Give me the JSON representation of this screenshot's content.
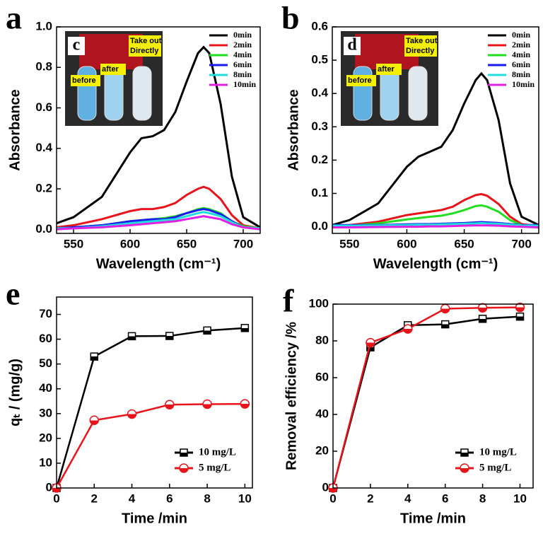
{
  "chart_data": [
    {
      "type": "line",
      "panel": "a",
      "xlabel": "Wavelength (cm⁻¹)",
      "ylabel": "Absorbance",
      "xlim": [
        535,
        715
      ],
      "ylim": [
        -0.02,
        1.0
      ],
      "xticks": [
        550,
        600,
        650,
        700
      ],
      "yticks": [
        {
          "value": 0,
          "label": "0.0"
        },
        0.2,
        0.4,
        0.6,
        0.8,
        {
          "value": 1,
          "label": "1.0"
        }
      ],
      "legend": "upper right",
      "inset": {
        "label": "c",
        "texts": [
          "before",
          "after",
          "Take out",
          "Directly"
        ]
      },
      "x": [
        535,
        550,
        575,
        600,
        610,
        620,
        630,
        640,
        650,
        660,
        665,
        670,
        680,
        690,
        700,
        715
      ],
      "series": [
        {
          "name": "0min",
          "color": "#000000",
          "values": [
            0.03,
            0.06,
            0.16,
            0.38,
            0.45,
            0.46,
            0.49,
            0.58,
            0.73,
            0.87,
            0.9,
            0.87,
            0.62,
            0.26,
            0.06,
            0.01
          ]
        },
        {
          "name": "2min",
          "color": "#e8141b",
          "values": [
            0.01,
            0.02,
            0.05,
            0.09,
            0.1,
            0.1,
            0.11,
            0.13,
            0.17,
            0.2,
            0.21,
            0.2,
            0.15,
            0.07,
            0.02,
            0.005
          ]
        },
        {
          "name": "4min",
          "color": "#22dd22",
          "values": [
            0.005,
            0.01,
            0.02,
            0.04,
            0.045,
            0.05,
            0.055,
            0.065,
            0.08,
            0.1,
            0.105,
            0.1,
            0.08,
            0.04,
            0.015,
            0.005
          ]
        },
        {
          "name": "6min",
          "color": "#1a1aee",
          "values": [
            0.005,
            0.01,
            0.02,
            0.04,
            0.045,
            0.05,
            0.05,
            0.06,
            0.08,
            0.095,
            0.1,
            0.095,
            0.075,
            0.04,
            0.01,
            0.005
          ]
        },
        {
          "name": "8min",
          "color": "#22dddd",
          "values": [
            0.005,
            0.005,
            0.015,
            0.03,
            0.035,
            0.04,
            0.045,
            0.05,
            0.065,
            0.08,
            0.085,
            0.08,
            0.065,
            0.035,
            0.01,
            0.005
          ]
        },
        {
          "name": "10min",
          "color": "#e020e0",
          "values": [
            0,
            0.005,
            0.01,
            0.02,
            0.025,
            0.03,
            0.035,
            0.04,
            0.05,
            0.06,
            0.065,
            0.06,
            0.05,
            0.025,
            0.01,
            0
          ]
        }
      ]
    },
    {
      "type": "line",
      "panel": "b",
      "xlabel": "Wavelength (cm⁻¹)",
      "ylabel": "Absorbance",
      "xlim": [
        535,
        715
      ],
      "ylim": [
        -0.02,
        0.6
      ],
      "xticks": [
        550,
        600,
        650,
        700
      ],
      "yticks": [
        {
          "value": 0,
          "label": "0.0"
        },
        0.1,
        0.2,
        0.3,
        0.4,
        0.5,
        0.6
      ],
      "legend": "upper right",
      "inset": {
        "label": "d",
        "texts": [
          "before",
          "after",
          "Take out",
          "Directly"
        ]
      },
      "x": [
        535,
        550,
        575,
        600,
        610,
        620,
        630,
        640,
        650,
        660,
        665,
        670,
        680,
        690,
        700,
        715
      ],
      "series": [
        {
          "name": "0min",
          "color": "#000000",
          "values": [
            0.005,
            0.02,
            0.07,
            0.18,
            0.21,
            0.225,
            0.24,
            0.29,
            0.37,
            0.44,
            0.46,
            0.44,
            0.32,
            0.13,
            0.03,
            0.005
          ]
        },
        {
          "name": "2min",
          "color": "#e8141b",
          "values": [
            0.002,
            0.005,
            0.015,
            0.035,
            0.04,
            0.045,
            0.05,
            0.06,
            0.08,
            0.095,
            0.098,
            0.093,
            0.068,
            0.03,
            0.008,
            0.002
          ]
        },
        {
          "name": "4min",
          "color": "#22dd22",
          "values": [
            0,
            0.003,
            0.01,
            0.022,
            0.026,
            0.03,
            0.033,
            0.04,
            0.05,
            0.062,
            0.064,
            0.06,
            0.045,
            0.02,
            0.005,
            0
          ]
        },
        {
          "name": "6min",
          "color": "#1a1aee",
          "values": [
            0.005,
            0.005,
            0.005,
            0.007,
            0.008,
            0.008,
            0.009,
            0.01,
            0.011,
            0.013,
            0.014,
            0.013,
            0.011,
            0.008,
            0.005,
            0.005
          ]
        },
        {
          "name": "8min",
          "color": "#22dddd",
          "values": [
            0.003,
            0.003,
            0.004,
            0.005,
            0.006,
            0.006,
            0.007,
            0.008,
            0.009,
            0.01,
            0.011,
            0.01,
            0.009,
            0.006,
            0.004,
            0.003
          ]
        },
        {
          "name": "10min",
          "color": "#e020e0",
          "values": [
            -0.002,
            -0.002,
            -0.001,
            0,
            0,
            0.001,
            0.001,
            0.002,
            0.003,
            0.004,
            0.004,
            0.004,
            0.003,
            0.001,
            0,
            -0.002
          ]
        }
      ]
    },
    {
      "type": "line",
      "panel": "e",
      "xlabel": "Time /min",
      "ylabel": "qₜ / (mg/g)",
      "xlim": [
        0,
        10.4
      ],
      "ylim": [
        0,
        77
      ],
      "xticks": [
        0,
        2,
        4,
        6,
        8,
        10
      ],
      "yticks": [
        0,
        10,
        20,
        30,
        40,
        50,
        60,
        70
      ],
      "legend": "lower right",
      "markers": true,
      "x": [
        0,
        2,
        4,
        6,
        8,
        10
      ],
      "series": [
        {
          "name": "10 mg/L",
          "color": "#000000",
          "marker": "square",
          "values": [
            0,
            53,
            61.2,
            61.3,
            63.5,
            64.5
          ]
        },
        {
          "name": "5 mg/L",
          "color": "#e8141b",
          "marker": "circle",
          "values": [
            0,
            27.3,
            29.8,
            33.6,
            33.8,
            33.9
          ]
        }
      ]
    },
    {
      "type": "line",
      "panel": "f",
      "xlabel": "Time /min",
      "ylabel": "Removal efficiency /%",
      "xlim": [
        0,
        10.7
      ],
      "ylim": [
        0,
        100
      ],
      "xticks": [
        0,
        2,
        4,
        6,
        8,
        10
      ],
      "yticks": [
        0,
        20,
        40,
        60,
        80,
        100
      ],
      "legend": "lower right",
      "markers": true,
      "x": [
        0,
        2,
        4,
        6,
        8,
        10
      ],
      "series": [
        {
          "name": "10 mg/L",
          "color": "#000000",
          "marker": "square",
          "values": [
            0,
            76.5,
            88.5,
            89,
            92,
            93.2
          ]
        },
        {
          "name": "5 mg/L",
          "color": "#e8141b",
          "marker": "circle",
          "values": [
            0,
            79,
            86.5,
            97.5,
            98,
            98.2
          ]
        }
      ]
    }
  ]
}
